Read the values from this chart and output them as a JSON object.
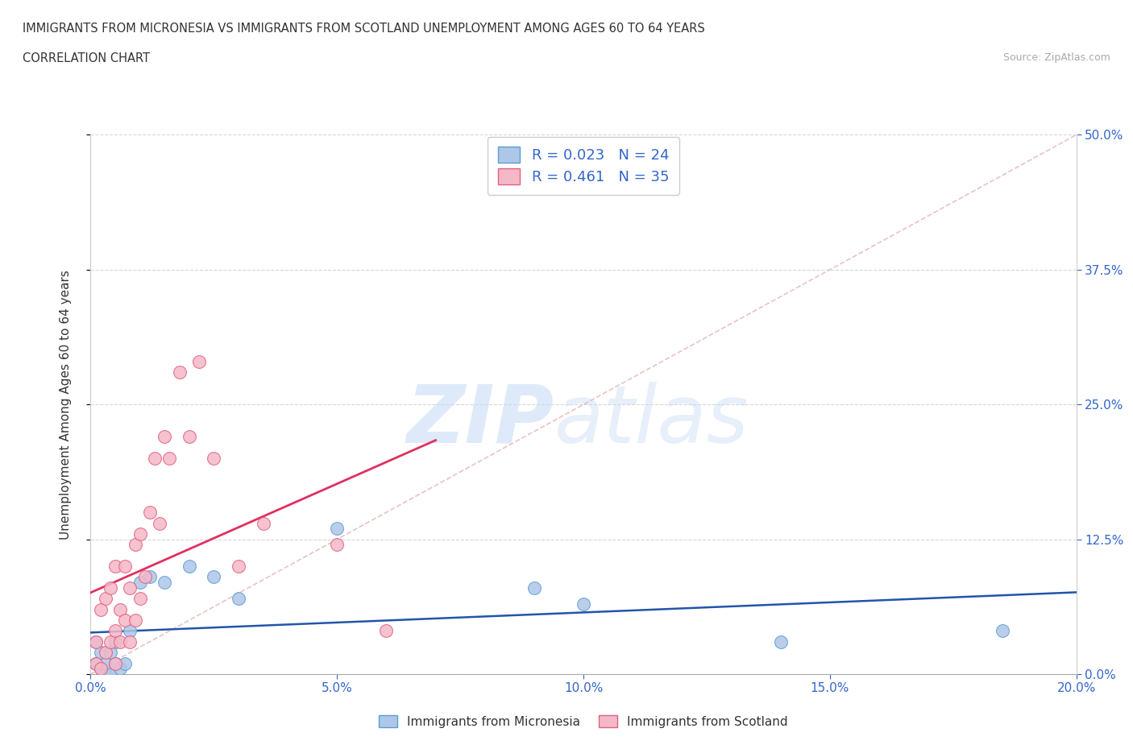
{
  "title_line1": "IMMIGRANTS FROM MICRONESIA VS IMMIGRANTS FROM SCOTLAND UNEMPLOYMENT AMONG AGES 60 TO 64 YEARS",
  "title_line2": "CORRELATION CHART",
  "source_text": "Source: ZipAtlas.com",
  "xlabel_ticks": [
    "0.0%",
    "5.0%",
    "10.0%",
    "15.0%",
    "20.0%"
  ],
  "xlabel_values": [
    0.0,
    0.05,
    0.1,
    0.15,
    0.2
  ],
  "ylabel_ticks": [
    "0.0%",
    "12.5%",
    "25.0%",
    "37.5%",
    "50.0%"
  ],
  "ylabel_values": [
    0.0,
    0.125,
    0.25,
    0.375,
    0.5
  ],
  "xlim": [
    0.0,
    0.2
  ],
  "ylim": [
    0.0,
    0.5
  ],
  "watermark_zip": "ZIP",
  "watermark_atlas": "atlas",
  "micronesia_color": "#aec6e8",
  "scotland_color": "#f5b8c8",
  "micronesia_edge": "#5a9fd4",
  "scotland_edge": "#e06080",
  "trendline_micronesia_color": "#2255aa",
  "trendline_scotland_color": "#e03060",
  "legend_micronesia": "R = 0.023   N = 24",
  "legend_scotland": "R = 0.461   N = 35",
  "legend_label_micro": "Immigrants from Micronesia",
  "legend_label_scot": "Immigrants from Scotland",
  "micronesia_x": [
    0.001,
    0.001,
    0.002,
    0.002,
    0.003,
    0.003,
    0.004,
    0.004,
    0.005,
    0.005,
    0.006,
    0.007,
    0.008,
    0.01,
    0.012,
    0.015,
    0.02,
    0.025,
    0.03,
    0.05,
    0.09,
    0.1,
    0.14,
    0.185
  ],
  "micronesia_y": [
    0.01,
    0.03,
    0.005,
    0.02,
    0.0,
    0.01,
    0.0,
    0.02,
    0.01,
    0.03,
    0.005,
    0.01,
    0.04,
    0.085,
    0.09,
    0.085,
    0.1,
    0.09,
    0.07,
    0.135,
    0.08,
    0.065,
    0.03,
    0.04
  ],
  "scotland_x": [
    0.001,
    0.001,
    0.002,
    0.002,
    0.003,
    0.003,
    0.004,
    0.004,
    0.005,
    0.005,
    0.005,
    0.006,
    0.006,
    0.007,
    0.007,
    0.008,
    0.008,
    0.009,
    0.009,
    0.01,
    0.01,
    0.011,
    0.012,
    0.013,
    0.014,
    0.015,
    0.016,
    0.018,
    0.02,
    0.022,
    0.025,
    0.03,
    0.035,
    0.05,
    0.06
  ],
  "scotland_y": [
    0.01,
    0.03,
    0.005,
    0.06,
    0.02,
    0.07,
    0.03,
    0.08,
    0.01,
    0.04,
    0.1,
    0.03,
    0.06,
    0.05,
    0.1,
    0.03,
    0.08,
    0.05,
    0.12,
    0.07,
    0.13,
    0.09,
    0.15,
    0.2,
    0.14,
    0.22,
    0.2,
    0.28,
    0.22,
    0.29,
    0.2,
    0.1,
    0.14,
    0.12,
    0.04
  ],
  "ref_line_x": [
    0.0,
    0.2
  ],
  "ref_line_y": [
    0.0,
    0.5
  ]
}
